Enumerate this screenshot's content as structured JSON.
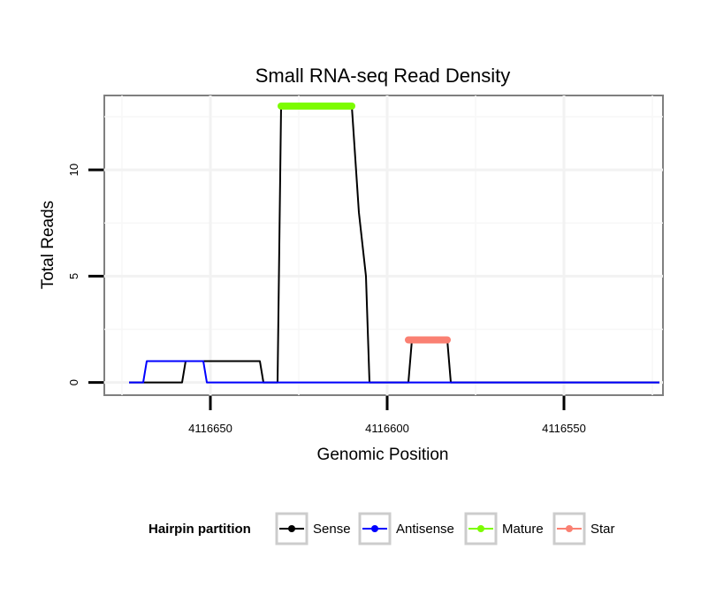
{
  "chart_data": {
    "type": "line",
    "title": "Small RNA-seq Read Density",
    "xlabel": "Genomic Position",
    "ylabel": "Total Reads",
    "x_reversed": true,
    "xlim": [
      4116680,
      4116522
    ],
    "ylim": [
      -0.6,
      13.5
    ],
    "x_ticks": [
      4116650,
      4116600,
      4116550
    ],
    "x_tick_labels": [
      "4116650",
      "4116600",
      "4116550"
    ],
    "y_ticks": [
      0,
      5,
      10
    ],
    "y_tick_labels": [
      "0",
      "5",
      "10"
    ],
    "grid": true,
    "legend_position": "bottom",
    "legend": {
      "title": "Hairpin partition",
      "entries": [
        "Sense",
        "Antisense",
        "Mature",
        "Star"
      ]
    },
    "series": [
      {
        "name": "Sense",
        "color": "#000000",
        "width": 2,
        "x": [
          4116673,
          4116658,
          4116657,
          4116636,
          4116635,
          4116631,
          4116630,
          4116610,
          4116608,
          4116606,
          4116605,
          4116594,
          4116593,
          4116583,
          4116582,
          4116575,
          4116574,
          4116523
        ],
        "y": [
          0,
          0,
          1,
          1,
          0,
          0,
          13,
          13,
          8,
          5,
          0,
          0,
          2,
          2,
          0,
          0,
          0,
          0
        ]
      },
      {
        "name": "Antisense",
        "color": "#0000ff",
        "width": 2,
        "x": [
          4116673,
          4116669,
          4116668,
          4116652,
          4116651,
          4116523
        ],
        "y": [
          0,
          0,
          1,
          1,
          0,
          0
        ]
      },
      {
        "name": "Mature",
        "color": "#7cfc00",
        "width": 8,
        "x": [
          4116630,
          4116610
        ],
        "y": [
          13,
          13
        ]
      },
      {
        "name": "Star",
        "color": "#fa8072",
        "width": 8,
        "x": [
          4116594,
          4116583
        ],
        "y": [
          2,
          2
        ]
      }
    ]
  }
}
